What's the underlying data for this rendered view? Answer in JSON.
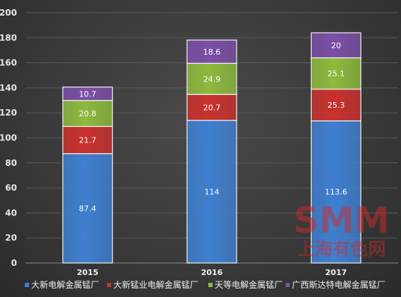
{
  "chart_data": {
    "type": "bar",
    "stacked": true,
    "categories": [
      "2015",
      "2016",
      "2017"
    ],
    "series": [
      {
        "name": "大新电解金属锰厂",
        "values": [
          87.4,
          114,
          113.6
        ],
        "color": "#3f7fd0"
      },
      {
        "name": "大新锰业电解金属锰厂",
        "values": [
          21.7,
          20.7,
          25.3
        ],
        "color": "#c8312d"
      },
      {
        "name": "天等电解金属锰厂",
        "values": [
          20.8,
          24.9,
          25.1
        ],
        "color": "#8dba3e"
      },
      {
        "name": "广西斯达特电解金属锰厂",
        "values": [
          10.7,
          18.6,
          20
        ],
        "color": "#7b4fa6"
      }
    ],
    "value_labels": [
      [
        "87.4",
        "114",
        "113.6"
      ],
      [
        "21.7",
        "20.7",
        "25.3"
      ],
      [
        "20.8",
        "24.9",
        "25.1"
      ],
      [
        "10.7",
        "18.6",
        "20"
      ]
    ],
    "ylim": [
      0,
      200
    ],
    "yticks": [
      0,
      20,
      40,
      60,
      80,
      100,
      120,
      140,
      160,
      180,
      200
    ],
    "grid": true,
    "legend_position": "bottom",
    "grid_color": "#595959",
    "watermark": "SMM 上海有色网"
  }
}
